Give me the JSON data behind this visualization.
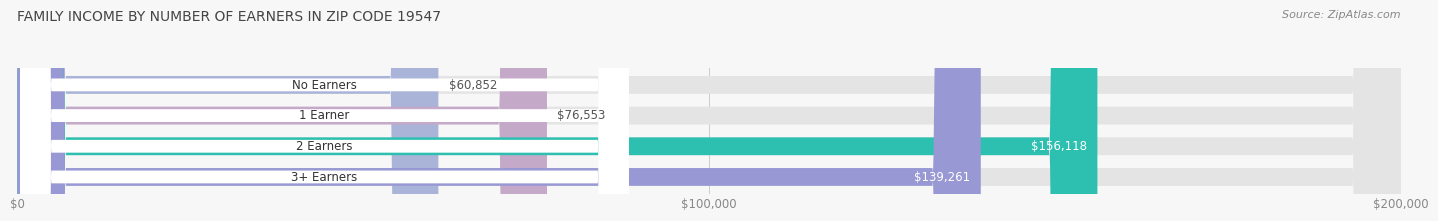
{
  "title": "FAMILY INCOME BY NUMBER OF EARNERS IN ZIP CODE 19547",
  "source": "Source: ZipAtlas.com",
  "categories": [
    "No Earners",
    "1 Earner",
    "2 Earners",
    "3+ Earners"
  ],
  "values": [
    60852,
    76553,
    156118,
    139261
  ],
  "bar_colors": [
    "#aab4d8",
    "#c4aac8",
    "#2dbfb0",
    "#9898d4"
  ],
  "label_texts": [
    "$60,852",
    "$76,553",
    "$156,118",
    "$139,261"
  ],
  "label_colors": [
    "#555555",
    "#555555",
    "#ffffff",
    "#ffffff"
  ],
  "label_inside": [
    false,
    false,
    true,
    true
  ],
  "xlim": [
    0,
    200000
  ],
  "xticks": [
    0,
    100000,
    200000
  ],
  "xtick_labels": [
    "$0",
    "$100,000",
    "$200,000"
  ],
  "background_color": "#f7f7f7",
  "title_fontsize": 10,
  "source_fontsize": 8,
  "bar_label_fontsize": 8.5,
  "category_fontsize": 8.5,
  "tick_fontsize": 8.5
}
